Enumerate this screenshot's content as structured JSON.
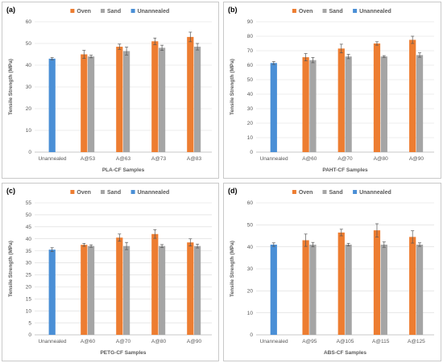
{
  "colors": {
    "oven": "#ED7D31",
    "sand": "#A5A5A5",
    "unannealed": "#4A8FD6",
    "grid": "#d9d9d9",
    "axis": "#bfbfbf",
    "error": "#555555"
  },
  "chart_data": [
    {
      "type": "bar",
      "panel_label": "(a)",
      "categories": [
        "Unannealed",
        "A@53",
        "A@63",
        "A@73",
        "A@83"
      ],
      "series": [
        {
          "name": "Oven",
          "values": [
            null,
            45,
            48.5,
            51,
            53
          ],
          "errors": [
            null,
            1.8,
            1.2,
            1.5,
            2.2
          ]
        },
        {
          "name": "Sand",
          "values": [
            null,
            44,
            46.5,
            48,
            48.5
          ],
          "errors": [
            null,
            0.6,
            1.8,
            1.2,
            1.5
          ]
        },
        {
          "name": "Unannealed",
          "values": [
            43,
            null,
            null,
            null,
            null
          ],
          "errors": [
            0.5,
            null,
            null,
            null,
            null
          ]
        }
      ],
      "xlabel": "PLA-CF Samples",
      "ylabel": "Tensile Strength (MPa)",
      "ylim": [
        0,
        60
      ],
      "yticks": [
        0,
        10,
        20,
        30,
        40,
        50,
        60
      ],
      "grid": true,
      "legend": "top"
    },
    {
      "type": "bar",
      "panel_label": "(b)",
      "categories": [
        "Unannealed",
        "A@60",
        "A@70",
        "A@80",
        "A@90"
      ],
      "series": [
        {
          "name": "Oven",
          "values": [
            null,
            65.5,
            71.5,
            75,
            77.5
          ],
          "errors": [
            null,
            2.5,
            3,
            1.2,
            2.5
          ]
        },
        {
          "name": "Sand",
          "values": [
            null,
            63.5,
            66,
            66,
            67
          ],
          "errors": [
            null,
            1.8,
            1.5,
            0.6,
            1.5
          ]
        },
        {
          "name": "Unannealed",
          "values": [
            61.5,
            null,
            null,
            null,
            null
          ],
          "errors": [
            1,
            null,
            null,
            null,
            null
          ]
        }
      ],
      "xlabel": "PAHT-CF Samples",
      "ylabel": "Tensile Strength (MPa)",
      "ylim": [
        0,
        90
      ],
      "yticks": [
        0,
        10,
        20,
        30,
        40,
        50,
        60,
        70,
        80,
        90
      ],
      "grid": true,
      "legend": "top"
    },
    {
      "type": "bar",
      "panel_label": "(c)",
      "categories": [
        "Unannealed",
        "A@60",
        "A@70",
        "A@80",
        "A@90"
      ],
      "series": [
        {
          "name": "Oven",
          "values": [
            null,
            37.5,
            40.5,
            42,
            38.5
          ],
          "errors": [
            null,
            0.6,
            1.5,
            1.8,
            1.5
          ]
        },
        {
          "name": "Sand",
          "values": [
            null,
            37,
            37,
            37,
            37
          ],
          "errors": [
            null,
            0.5,
            1.5,
            0.6,
            0.8
          ]
        },
        {
          "name": "Unannealed",
          "values": [
            35.5,
            null,
            null,
            null,
            null
          ],
          "errors": [
            0.8,
            null,
            null,
            null,
            null
          ]
        }
      ],
      "xlabel": "PETG-CF Samples",
      "ylabel": "Tensile Strength (MPa)",
      "ylim": [
        0,
        55
      ],
      "yticks": [
        0,
        5,
        10,
        15,
        20,
        25,
        30,
        35,
        40,
        45,
        50,
        55
      ],
      "grid": true,
      "legend": "top"
    },
    {
      "type": "bar",
      "panel_label": "(d)",
      "categories": [
        "Unannealed",
        "A@95",
        "A@105",
        "A@115",
        "A@125"
      ],
      "series": [
        {
          "name": "Oven",
          "values": [
            null,
            43,
            46.5,
            47.5,
            44.5
          ],
          "errors": [
            null,
            2.8,
            1.5,
            3,
            2.8
          ]
        },
        {
          "name": "Sand",
          "values": [
            null,
            41,
            41,
            41,
            41
          ],
          "errors": [
            null,
            1,
            0.6,
            1.2,
            0.8
          ]
        },
        {
          "name": "Unannealed",
          "values": [
            41,
            null,
            null,
            null,
            null
          ],
          "errors": [
            0.8,
            null,
            null,
            null,
            null
          ]
        }
      ],
      "xlabel": "ABS-CF Samples",
      "ylabel": "Tensile Strength (MPa)",
      "ylim": [
        0,
        60
      ],
      "yticks": [
        0,
        10,
        20,
        30,
        40,
        50,
        60
      ],
      "grid": true,
      "legend": "top"
    }
  ]
}
